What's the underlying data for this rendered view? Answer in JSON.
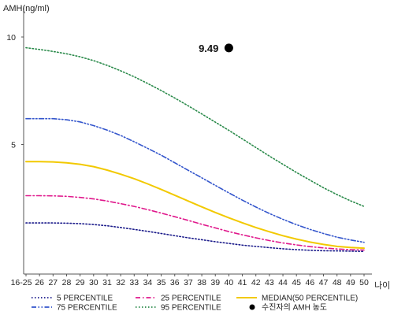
{
  "chart_data": {
    "type": "line",
    "ylabel": "AMH(ng/ml)",
    "xlabel": "나이",
    "x": [
      "16-25",
      "26",
      "27",
      "28",
      "29",
      "30",
      "31",
      "32",
      "33",
      "34",
      "35",
      "36",
      "37",
      "38",
      "39",
      "40",
      "41",
      "42",
      "43",
      "44",
      "45",
      "46",
      "47",
      "48",
      "49",
      "50"
    ],
    "y_ticks": [
      5,
      10
    ],
    "ylim": [
      0,
      11
    ],
    "grid": false,
    "series": [
      {
        "name": "5 PERCENTILE",
        "color": "#1a1a8a",
        "dash": "dot",
        "values": [
          1.35,
          1.35,
          1.35,
          1.34,
          1.32,
          1.28,
          1.22,
          1.14,
          1.05,
          0.96,
          0.86,
          0.76,
          0.66,
          0.57,
          0.48,
          0.4,
          0.32,
          0.26,
          0.2,
          0.15,
          0.11,
          0.08,
          0.06,
          0.05,
          0.04,
          0.03
        ]
      },
      {
        "name": "25 PERCENTILE",
        "color": "#e0188c",
        "dash": "dashdot",
        "values": [
          2.62,
          2.62,
          2.61,
          2.59,
          2.54,
          2.47,
          2.37,
          2.25,
          2.12,
          1.97,
          1.81,
          1.64,
          1.47,
          1.29,
          1.12,
          0.95,
          0.8,
          0.66,
          0.53,
          0.42,
          0.33,
          0.25,
          0.19,
          0.14,
          0.11,
          0.09
        ]
      },
      {
        "name": "MEDIAN(50 PERCENTILE)",
        "color": "#f2c900",
        "dash": "solid",
        "values": [
          4.2,
          4.2,
          4.19,
          4.15,
          4.08,
          3.97,
          3.81,
          3.62,
          3.41,
          3.17,
          2.91,
          2.64,
          2.37,
          2.1,
          1.84,
          1.59,
          1.36,
          1.14,
          0.94,
          0.76,
          0.6,
          0.46,
          0.35,
          0.26,
          0.21,
          0.18
        ]
      },
      {
        "name": "75 PERCENTILE",
        "color": "#3355cc",
        "dash": "dashdotdot",
        "values": [
          6.2,
          6.2,
          6.2,
          6.15,
          6.05,
          5.88,
          5.67,
          5.42,
          5.13,
          4.82,
          4.5,
          4.15,
          3.8,
          3.45,
          3.1,
          2.75,
          2.41,
          2.09,
          1.79,
          1.52,
          1.27,
          1.05,
          0.86,
          0.69,
          0.56,
          0.45
        ]
      },
      {
        "name": "95 PERCENTILE",
        "color": "#2a8a4a",
        "dash": "dot",
        "values": [
          9.5,
          9.42,
          9.33,
          9.22,
          9.08,
          8.9,
          8.68,
          8.43,
          8.15,
          7.84,
          7.51,
          7.16,
          6.8,
          6.42,
          6.04,
          5.66,
          5.26,
          4.86,
          4.46,
          4.08,
          3.7,
          3.34,
          2.99,
          2.67,
          2.38,
          2.12
        ]
      }
    ],
    "highlight": {
      "name": "수진자의 AMH 농도",
      "x": "40",
      "y": 9.49,
      "label": "9.49",
      "color": "#000000"
    },
    "legend_position": "bottom"
  }
}
